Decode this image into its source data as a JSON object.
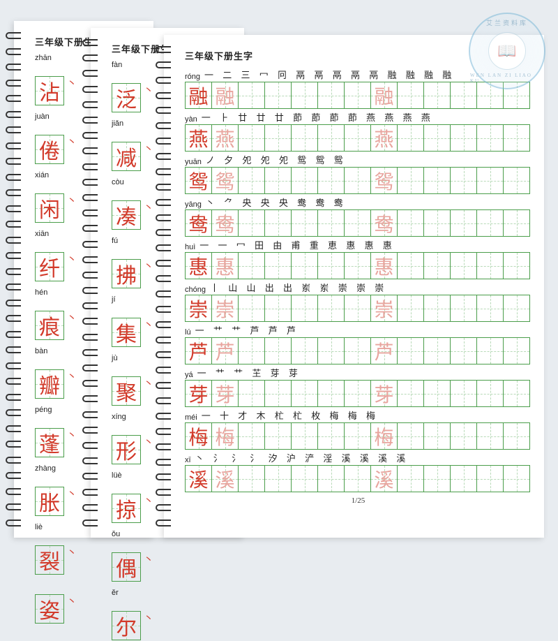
{
  "background_color": "#e8ecf0",
  "page_bg": "#ffffff",
  "grid_border_color": "#4a9d4a",
  "grid_guide_color": "#b8dab8",
  "red": "#d23a2a",
  "pink": "#e8a59e",
  "text_color": "#222222",
  "title": "三年级下册生字",
  "page_number": "1/25",
  "badge": {
    "top_text": "艾兰资料库",
    "bottom_text": "WEN LAN ZI LIAO KU",
    "icon": "📖"
  },
  "page1_entries": [
    {
      "pinyin": "zhān",
      "char": "沾"
    },
    {
      "pinyin": "juàn",
      "char": "倦"
    },
    {
      "pinyin": "xián",
      "char": "闲"
    },
    {
      "pinyin": "xiān",
      "char": "纤"
    },
    {
      "pinyin": "hén",
      "char": "痕"
    },
    {
      "pinyin": "bàn",
      "char": "瓣"
    },
    {
      "pinyin": "péng",
      "char": "蓬"
    },
    {
      "pinyin": "zhàng",
      "char": "胀"
    },
    {
      "pinyin": "liè",
      "char": "裂"
    },
    {
      "pinyin": "",
      "char": "姿"
    }
  ],
  "page2_entries": [
    {
      "pinyin": "fàn",
      "char": "泛"
    },
    {
      "pinyin": "jiǎn",
      "char": "减"
    },
    {
      "pinyin": "còu",
      "char": "凑"
    },
    {
      "pinyin": "fú",
      "char": "拂"
    },
    {
      "pinyin": "jí",
      "char": "集"
    },
    {
      "pinyin": "jù",
      "char": "聚"
    },
    {
      "pinyin": "xíng",
      "char": "形"
    },
    {
      "pinyin": "lüè",
      "char": "掠"
    },
    {
      "pinyin": "ǒu",
      "char": "偶"
    },
    {
      "pinyin": "ěr",
      "char": "尔"
    }
  ],
  "page3_entries": [
    {
      "pinyin": "róng",
      "char": "融",
      "strokes": "一 二 三 冖 冋 鬲 鬲 鬲 鬲 鬲 融 融 融 融"
    },
    {
      "pinyin": "yàn",
      "char": "燕",
      "strokes": "一 ⺊ 廿 廿 廿 莭 莭 莭 莭 燕 燕 燕 燕"
    },
    {
      "pinyin": "yuān",
      "char": "鸳",
      "strokes": "ノ 夕 夗 夗 夗 鸳 鸳 鸳"
    },
    {
      "pinyin": "yāng",
      "char": "鸯",
      "strokes": "丶 ⺈ 央 央 央 鸯 鸯 鸯"
    },
    {
      "pinyin": "huì",
      "char": "惠",
      "strokes": "一 一 冖 田 由 甫 重 恵 惠 惠 惠"
    },
    {
      "pinyin": "chóng",
      "char": "崇",
      "strokes": "丨 山 山 出 出 岽 岽 崇 崇 崇"
    },
    {
      "pinyin": "lú",
      "char": "芦",
      "strokes": "一 艹 艹 芦 芦 芦"
    },
    {
      "pinyin": "yá",
      "char": "芽",
      "strokes": "一 艹 艹 芏 芽 芽"
    },
    {
      "pinyin": "méi",
      "char": "梅",
      "strokes": "一 十 才 木 杧 杧 枚 梅 梅 梅"
    },
    {
      "pinyin": "xī",
      "char": "溪",
      "strokes": "丶 氵 氵 氵 汐 沪 浐 淫 溪 溪 溪 溪"
    }
  ],
  "grid": {
    "cells": 13,
    "trace_positions": [
      0,
      1,
      7
    ],
    "red_position": 0
  }
}
